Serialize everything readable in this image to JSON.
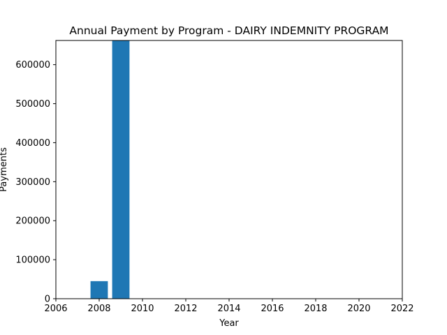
{
  "chart_data": {
    "type": "bar",
    "title": "Annual Payment by Program - DAIRY INDEMNITY PROGRAM",
    "xlabel": "Year",
    "ylabel": "Payments",
    "x": [
      2008,
      2009
    ],
    "values": [
      45000,
      662000
    ],
    "bar_width": 0.8,
    "xlim": [
      2006,
      2022
    ],
    "ylim": [
      0,
      662000
    ],
    "xticks": [
      2006,
      2008,
      2010,
      2012,
      2014,
      2016,
      2018,
      2020,
      2022
    ],
    "yticks": [
      0,
      100000,
      200000,
      300000,
      400000,
      500000,
      600000
    ],
    "xtick_labels": [
      "2006",
      "2008",
      "2010",
      "2012",
      "2014",
      "2016",
      "2018",
      "2020",
      "2022"
    ],
    "ytick_labels": [
      "0",
      "100000",
      "200000",
      "300000",
      "400000",
      "500000",
      "600000"
    ],
    "grid": false,
    "bar_color": "#1f77b4"
  }
}
